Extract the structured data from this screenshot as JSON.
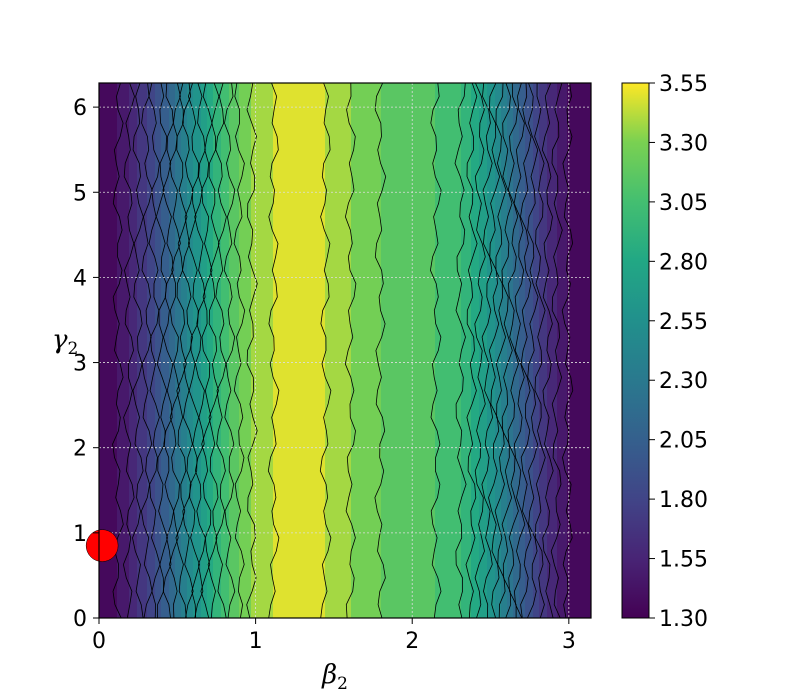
{
  "chart_data": {
    "type": "heatmap",
    "subtype": "filled-contour",
    "title": "",
    "xlabel": {
      "symbol": "β",
      "subscript": "2"
    },
    "ylabel": {
      "symbol": "γ",
      "subscript": "2"
    },
    "xlim": [
      0,
      3.1416
    ],
    "ylim": [
      0,
      6.2832
    ],
    "x_ticks": [
      "0",
      "1",
      "2",
      "3"
    ],
    "y_ticks": [
      "0",
      "1",
      "2",
      "3",
      "4",
      "5",
      "6"
    ],
    "grid": true,
    "colormap": "viridis",
    "colorbar": {
      "min": 1.3,
      "max": 3.55,
      "ticks": [
        "1.30",
        "1.55",
        "1.80",
        "2.05",
        "2.30",
        "2.55",
        "2.80",
        "3.05",
        "3.30",
        "3.55"
      ]
    },
    "contour_levels": [
      1.3,
      1.4125,
      1.525,
      1.6375,
      1.75,
      1.8625,
      1.975,
      2.0875,
      2.2,
      2.3125,
      2.425,
      2.5375,
      2.65,
      2.7625,
      2.875,
      2.9875,
      3.1,
      3.2125,
      3.325,
      3.4375,
      3.55
    ],
    "profile_along_beta": {
      "beta": [
        0,
        0.1,
        0.2,
        0.3,
        0.4,
        0.5,
        0.6,
        0.7,
        0.8,
        0.9,
        1.0,
        1.1,
        1.2,
        1.3,
        1.4,
        1.5,
        1.6,
        1.7,
        1.8,
        1.9,
        2.0,
        2.1,
        2.2,
        2.3,
        2.4,
        2.5,
        2.6,
        2.7,
        2.8,
        2.9,
        3.0,
        3.1416
      ],
      "value": [
        1.3,
        1.38,
        1.54,
        1.74,
        1.97,
        2.24,
        2.52,
        2.8,
        3.04,
        3.22,
        3.36,
        3.43,
        3.48,
        3.5,
        3.47,
        3.4,
        3.33,
        3.26,
        3.21,
        3.18,
        3.15,
        3.12,
        3.08,
        3.0,
        2.84,
        2.6,
        2.32,
        2.04,
        1.78,
        1.56,
        1.4,
        1.3
      ]
    },
    "marker": {
      "beta": 0.02,
      "gamma": 0.85,
      "color": "#ff0000",
      "shape": "circle"
    }
  }
}
